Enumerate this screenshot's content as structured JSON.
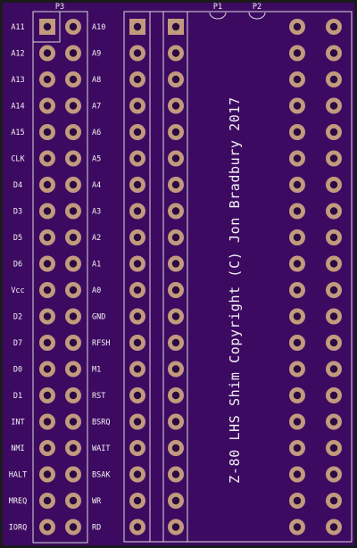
{
  "board": {
    "silkscreen_text": "Z-80 LHS Shim Copyright (C) Jon Bradbury 2017",
    "colors": {
      "border": "#1a1a1a",
      "substrate": "#3d0a62",
      "outline": "#d9d9d9",
      "pad_ring": "#c29a7d",
      "pad_hole": "#2a0a40"
    }
  },
  "connector_p3": {
    "ref": "P3",
    "left_labels": [
      "A11",
      "A12",
      "A13",
      "A14",
      "A15",
      "CLK",
      "D4",
      "D3",
      "D5",
      "D6",
      "Vcc",
      "D2",
      "D7",
      "D0",
      "D1",
      "INT",
      "NMI",
      "HALT",
      "MREQ",
      "IORQ"
    ],
    "right_labels": [
      "A10",
      "A9",
      "A8",
      "A7",
      "A6",
      "A5",
      "A4",
      "A3",
      "A2",
      "A1",
      "A0",
      "GND",
      "RFSH",
      "M1",
      "RST",
      "BSRQ",
      "WAIT",
      "BSAK",
      "WR",
      "RD"
    ]
  },
  "header_p1": {
    "ref": "P1"
  },
  "header_p2": {
    "ref": "P2"
  }
}
